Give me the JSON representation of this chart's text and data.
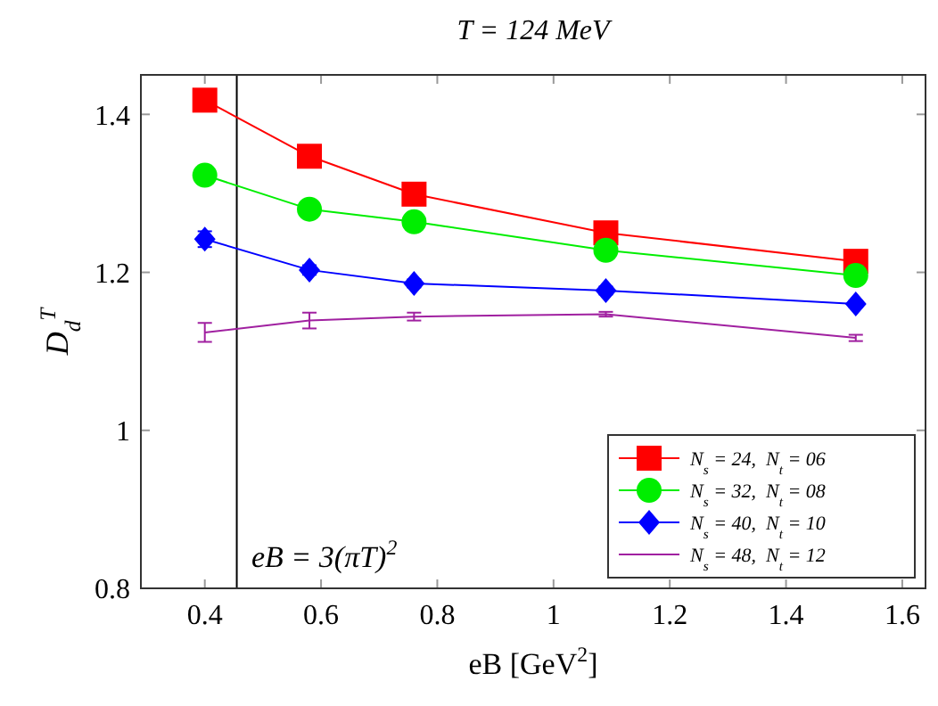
{
  "chart_data": {
    "type": "line",
    "title": "T = 124 MeV",
    "xlabel": "eB [GeV$^{2}$]",
    "ylabel": "D$_{d}$$^{T}$",
    "x": [
      0.4,
      0.58,
      0.76,
      1.09,
      1.52
    ],
    "series": [
      {
        "name": "N$_{s}$ = 24,  N$_{t}$ = 06",
        "color": "#ff0000",
        "marker": "square",
        "values": [
          1.418,
          1.347,
          1.299,
          1.25,
          1.214
        ]
      },
      {
        "name": "N$_{s}$ = 32,  N$_{t}$ = 08",
        "color": "#00ee00",
        "marker": "circle",
        "values": [
          1.323,
          1.28,
          1.264,
          1.228,
          1.196
        ]
      },
      {
        "name": "N$_{s}$ = 40,  N$_{t}$ = 10",
        "color": "#0000ff",
        "marker": "diamond",
        "values": [
          1.242,
          1.203,
          1.186,
          1.177,
          1.16
        ],
        "errors": [
          0.01,
          0.006,
          0.005,
          0.005,
          0.004
        ]
      },
      {
        "name": "N$_{s}$ = 48,  N$_{t}$ = 12",
        "color": "#a020a0",
        "marker": "none",
        "values": [
          1.124,
          1.139,
          1.144,
          1.147,
          1.117
        ],
        "errors": [
          0.012,
          0.01,
          0.005,
          0.003,
          0.004
        ]
      }
    ],
    "xlim": [
      0.29,
      1.64
    ],
    "xticks": [
      0.4,
      0.6,
      0.8,
      1,
      1.2,
      1.4,
      1.6
    ],
    "ylim": [
      0.8,
      1.45
    ],
    "yticks": [
      0.8,
      1,
      1.2,
      1.4
    ],
    "ref_lines": [
      {
        "axis": "x",
        "value": 0.455,
        "color": "#000000"
      }
    ],
    "annotations": [
      "eB = 3(πT)$^{2}$"
    ],
    "legend": "bottom right",
    "grid": false
  }
}
